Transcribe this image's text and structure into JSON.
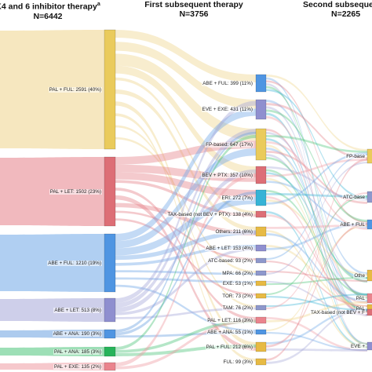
{
  "headers": [
    {
      "title": "K4 and 6 inhibitor therapy",
      "sup": "a",
      "n": "N=6442"
    },
    {
      "title": "First subsequent therapy",
      "n": "N=3756"
    },
    {
      "title": "Second subseque",
      "n": "N=2265"
    }
  ],
  "colors": {
    "pal_ful": "#efd48a",
    "pal_let": "#e58088",
    "abe_ful": "#6fa8e8",
    "abe_let": "#a5a8d8",
    "abe_ana": "#6aa0e0",
    "pal_ana": "#4cc47a",
    "pal_exe": "#ef9aa3",
    "node_yellow": "#eacb5c",
    "node_red": "#dd6e76",
    "node_blue": "#4f95e2",
    "node_purple": "#8f8fcf",
    "node_green": "#27b35a",
    "node_pink": "#ea848d",
    "node_cyan": "#36b3d6",
    "node_gray": "#8e98cc",
    "node_gold": "#e7ba44"
  },
  "col1": [
    {
      "label": "PAL + FUL: 2591 (40%)",
      "color": "node_yellow",
      "flow": "pal_ful",
      "value": 2591
    },
    {
      "label": "PAL + LET: 1502 (23%)",
      "color": "node_red",
      "flow": "pal_let",
      "value": 1502
    },
    {
      "label": "ABE + FUL: 1210 (19%)",
      "color": "node_blue",
      "flow": "abe_ful",
      "value": 1210
    },
    {
      "label": "ABE + LET: 513 (8%)",
      "color": "node_purple",
      "flow": "abe_let",
      "value": 513
    },
    {
      "label": "ABE + ANA: 190 (3%)",
      "color": "node_blue",
      "flow": "abe_ana",
      "value": 190
    },
    {
      "label": "PAL + ANA: 185 (3%)",
      "color": "node_green",
      "flow": "pal_ana",
      "value": 185
    },
    {
      "label": "PAL + EXE: 135 (2%)",
      "color": "node_pink",
      "flow": "pal_exe",
      "value": 135
    }
  ],
  "col2": [
    {
      "label": "ABE + FUL: 399 (11%)",
      "color": "node_blue"
    },
    {
      "label": "EVE + EXE: 431 (11%)",
      "color": "node_purple"
    },
    {
      "label": "FP-based: 647 (17%)",
      "color": "node_yellow"
    },
    {
      "label": "BEV + PTX: 357 (10%)",
      "color": "node_red"
    },
    {
      "label": "ERI: 272 (7%)",
      "color": "node_cyan"
    },
    {
      "label": "TAX-based (not BEV + PTX): 138 (4%)",
      "color": "node_red"
    },
    {
      "label": "Others: 211 (6%)",
      "color": "node_gold"
    },
    {
      "label": "ABE + LET: 153 (4%)",
      "color": "node_purple"
    },
    {
      "label": "ATC-based: 93 (2%)",
      "color": "node_gray"
    },
    {
      "label": "MPA: 66 (2%)",
      "color": "node_gray"
    },
    {
      "label": "EXE: 53 (1%)",
      "color": "node_gold"
    },
    {
      "label": "TOR: 73 (2%)",
      "color": "node_gold"
    },
    {
      "label": "TAM: 76 (2%)",
      "color": "node_gray"
    },
    {
      "label": "PAL + LET: 116 (3%)",
      "color": "node_pink"
    },
    {
      "label": "ABE + ANA: 55 (1%)",
      "color": "node_blue"
    },
    {
      "label": "PAL + FUL: 212 (6%)",
      "color": "node_gold"
    },
    {
      "label": "FUL: 99 (3%)",
      "color": "node_gold"
    }
  ],
  "col3": [
    {
      "label": "FP-base",
      "color": "node_yellow"
    },
    {
      "label": "ATC-base",
      "color": "node_gray"
    },
    {
      "label": "ABE + FUL",
      "color": "node_blue"
    },
    {
      "label": "Othe",
      "color": "node_gold"
    },
    {
      "label": "PAL",
      "color": "node_pink"
    },
    {
      "label": "PAL",
      "color": "node_gold"
    },
    {
      "label": "TAX-based (not BEV + F",
      "color": "node_red"
    },
    {
      "label": "EVE +",
      "color": "node_purple"
    }
  ]
}
